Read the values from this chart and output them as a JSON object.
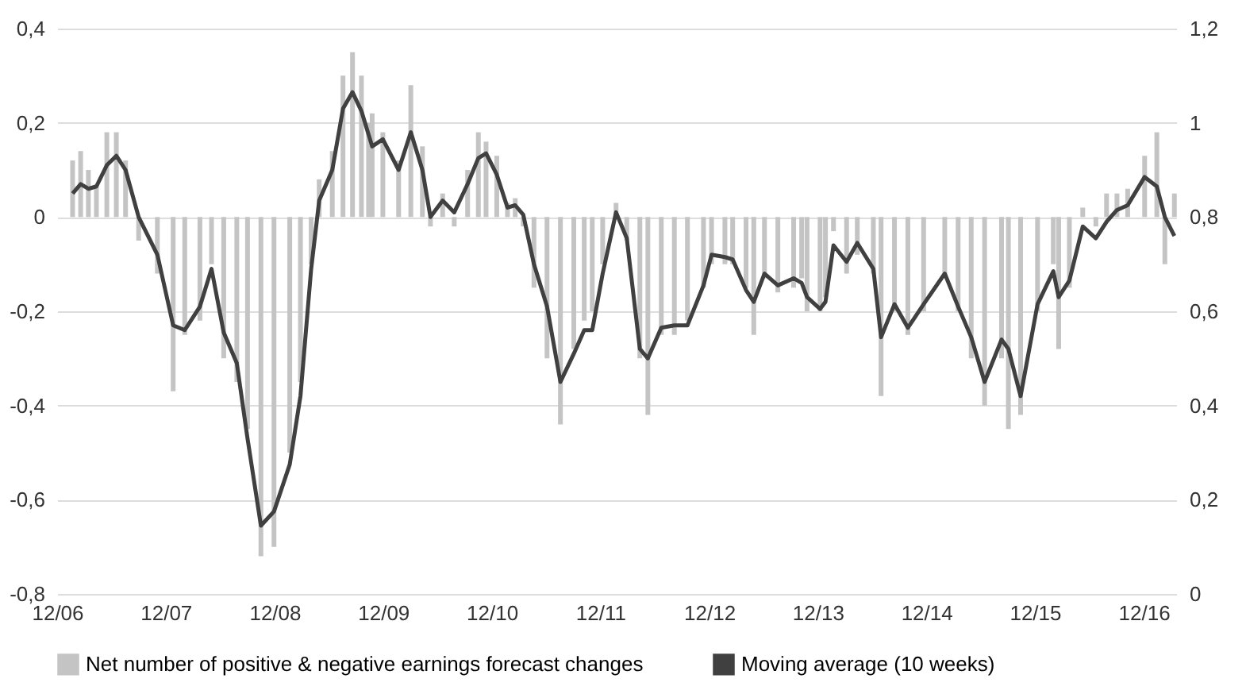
{
  "chart_data": {
    "type": "bar",
    "x": [
      "2007-01-22",
      "2007-02-18",
      "2007-03-16",
      "2007-04-12",
      "2007-05-17",
      "2007-06-18",
      "2007-07-19",
      "2007-09-01",
      "2007-11-03",
      "2007-12-26",
      "2008-02-03",
      "2008-03-25",
      "2008-05-03",
      "2008-06-13",
      "2008-07-27",
      "2008-09-01",
      "2008-10-16",
      "2008-11-29",
      "2009-01-21",
      "2009-02-26",
      "2009-04-03",
      "2009-04-30",
      "2009-06-13",
      "2009-07-19",
      "2009-08-20",
      "2009-09-19",
      "2009-10-13",
      "2009-10-25",
      "2009-11-30",
      "2010-01-22",
      "2010-03-04",
      "2010-04-12",
      "2010-05-09",
      "2010-06-19",
      "2010-07-28",
      "2010-09-11",
      "2010-10-17",
      "2010-11-12",
      "2010-12-18",
      "2011-01-23",
      "2011-02-18",
      "2011-03-17",
      "2011-04-22",
      "2011-06-05",
      "2011-07-20",
      "2011-09-03",
      "2011-10-08",
      "2011-11-04",
      "2011-12-09",
      "2012-01-23",
      "2012-02-28",
      "2012-04-12",
      "2012-05-09",
      "2012-06-23",
      "2012-08-06",
      "2012-09-19",
      "2012-11-12",
      "2012-12-09",
      "2013-01-23",
      "2013-02-18",
      "2013-04-04",
      "2013-04-30",
      "2013-06-05",
      "2013-07-20",
      "2013-09-11",
      "2013-10-08",
      "2013-10-26",
      "2013-12-09",
      "2013-12-27",
      "2014-01-23",
      "2014-03-08",
      "2014-04-13",
      "2014-06-06",
      "2014-07-02",
      "2014-08-16",
      "2014-09-30",
      "2014-11-22",
      "2015-02-01",
      "2015-03-18",
      "2015-05-01",
      "2015-06-15",
      "2015-08-11",
      "2015-09-03",
      "2015-10-14",
      "2015-12-10",
      "2016-02-01",
      "2016-02-19",
      "2016-03-26",
      "2016-05-10",
      "2016-06-23",
      "2016-07-29",
      "2016-09-02",
      "2016-10-08",
      "2016-12-04",
      "2017-01-14",
      "2017-02-10",
      "2017-03-14"
    ],
    "series": [
      {
        "name": "Net number of positive & negative earnings forecast changes",
        "color": "#c4c4c4",
        "values": [
          0.12,
          0.14,
          0.1,
          0.07,
          0.18,
          0.18,
          0.12,
          -0.05,
          -0.12,
          -0.37,
          -0.25,
          -0.22,
          -0.1,
          -0.3,
          -0.35,
          -0.45,
          -0.72,
          -0.7,
          -0.5,
          -0.35,
          -0.1,
          0.08,
          0.14,
          0.3,
          0.35,
          0.3,
          0.2,
          0.22,
          0.18,
          0.12,
          0.28,
          0.15,
          -0.02,
          0.05,
          -0.02,
          0.1,
          0.18,
          0.16,
          0.13,
          0.03,
          0.04,
          -0.02,
          -0.15,
          -0.3,
          -0.44,
          -0.28,
          -0.22,
          -0.2,
          -0.1,
          0.03,
          -0.05,
          -0.3,
          -0.42,
          -0.25,
          -0.25,
          -0.22,
          -0.15,
          -0.1,
          -0.1,
          -0.1,
          -0.15,
          -0.25,
          -0.13,
          -0.16,
          -0.15,
          -0.13,
          -0.2,
          -0.2,
          -0.17,
          -0.03,
          -0.12,
          -0.08,
          -0.12,
          -0.38,
          -0.2,
          -0.25,
          -0.2,
          -0.13,
          -0.2,
          -0.3,
          -0.4,
          -0.3,
          -0.45,
          -0.42,
          -0.2,
          -0.1,
          -0.28,
          -0.15,
          0.02,
          -0.02,
          0.05,
          0.05,
          0.06,
          0.13,
          0.18,
          -0.1,
          0.05
        ]
      },
      {
        "name": "Moving average (10 weeks)",
        "type": "line",
        "axis": "y2",
        "color": "#404040",
        "values": [
          0.85,
          0.87,
          0.86,
          0.865,
          0.91,
          0.93,
          0.9,
          0.8,
          0.72,
          0.57,
          0.56,
          0.61,
          0.69,
          0.555,
          0.49,
          0.33,
          0.145,
          0.175,
          0.275,
          0.42,
          0.69,
          0.835,
          0.9,
          1.03,
          1.065,
          1.025,
          0.975,
          0.95,
          0.965,
          0.9,
          0.98,
          0.9,
          0.8,
          0.835,
          0.81,
          0.87,
          0.925,
          0.935,
          0.89,
          0.82,
          0.825,
          0.805,
          0.7,
          0.61,
          0.45,
          0.51,
          0.56,
          0.56,
          0.68,
          0.81,
          0.755,
          0.52,
          0.5,
          0.565,
          0.57,
          0.57,
          0.655,
          0.72,
          0.715,
          0.71,
          0.645,
          0.62,
          0.68,
          0.655,
          0.67,
          0.66,
          0.63,
          0.605,
          0.62,
          0.74,
          0.705,
          0.745,
          0.69,
          0.545,
          0.615,
          0.565,
          0.615,
          0.68,
          0.61,
          0.545,
          0.45,
          0.54,
          0.52,
          0.42,
          0.615,
          0.685,
          0.63,
          0.665,
          0.78,
          0.755,
          0.79,
          0.815,
          0.825,
          0.885,
          0.865,
          0.8,
          0.76
        ]
      }
    ],
    "xlim": [
      "2006-12-01",
      "2017-03-20"
    ],
    "xticks": [
      {
        "value": "2006-12-01",
        "label": "12/06"
      },
      {
        "value": "2007-12-01",
        "label": "12/07"
      },
      {
        "value": "2008-12-01",
        "label": "12/08"
      },
      {
        "value": "2009-12-01",
        "label": "12/09"
      },
      {
        "value": "2010-12-01",
        "label": "12/10"
      },
      {
        "value": "2011-12-01",
        "label": "12/11"
      },
      {
        "value": "2012-12-01",
        "label": "12/12"
      },
      {
        "value": "2013-12-01",
        "label": "12/13"
      },
      {
        "value": "2014-12-01",
        "label": "12/14"
      },
      {
        "value": "2015-12-01",
        "label": "12/15"
      },
      {
        "value": "2016-12-01",
        "label": "12/16"
      }
    ],
    "ylim": [
      -0.8,
      0.4
    ],
    "yticks": [
      {
        "value": -0.8,
        "label": "-0,8"
      },
      {
        "value": -0.6,
        "label": "-0,6"
      },
      {
        "value": -0.4,
        "label": "-0,4"
      },
      {
        "value": -0.2,
        "label": "-0,2"
      },
      0,
      {
        "value": 0.2,
        "label": "0,2"
      },
      {
        "value": 0.4,
        "label": "0,4"
      }
    ],
    "y2lim": [
      0,
      1.2
    ],
    "y2ticks": [
      0,
      {
        "value": 0.2,
        "label": "0,2"
      },
      {
        "value": 0.4,
        "label": "0,4"
      },
      {
        "value": 0.6,
        "label": "0,6"
      },
      {
        "value": 0.8,
        "label": "0,8"
      },
      1,
      {
        "value": 1.2,
        "label": "1,2"
      }
    ],
    "grid": "y",
    "legend": "bottom",
    "marker": "none",
    "line_style": "solid"
  }
}
